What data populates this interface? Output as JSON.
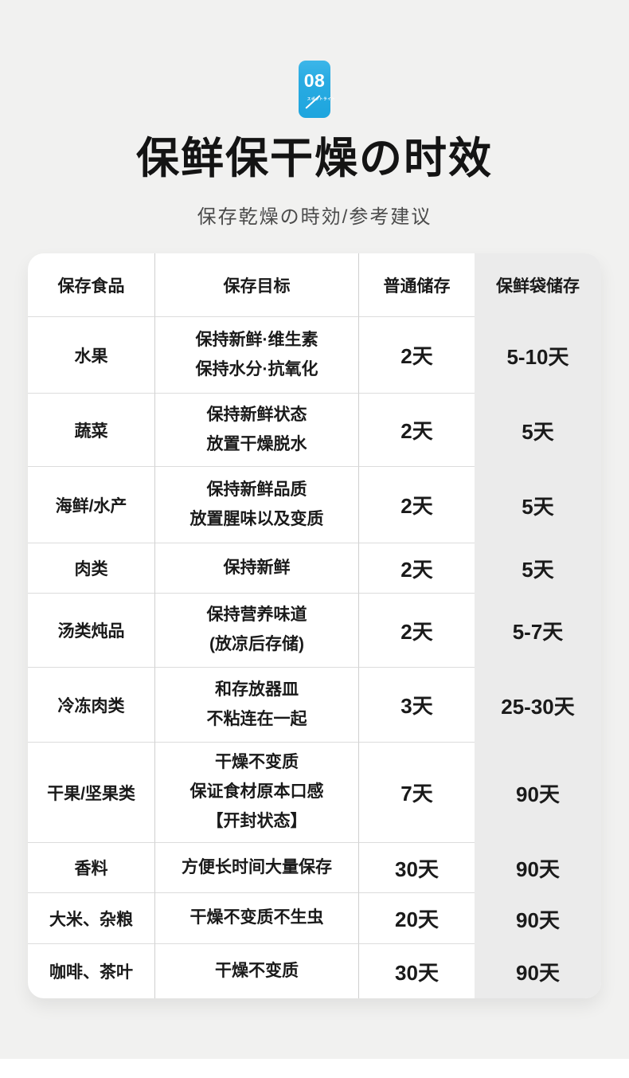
{
  "badge": {
    "number": "08",
    "label": "スポットライト",
    "color": "#29abe2"
  },
  "header": {
    "title": "保鲜保干燥の时效",
    "subtitle": "保存乾燥の時効/参考建议"
  },
  "table": {
    "columns": [
      "保存食品",
      "保存目标",
      "普通储存",
      "保鲜袋储存"
    ],
    "highlight_column_bg": "#ebebeb",
    "rows": [
      {
        "food": "水果",
        "goal": "保持新鲜·维生素\n保持水分·抗氧化",
        "normal": "2天",
        "bag": "5-10天"
      },
      {
        "food": "蔬菜",
        "goal": "保持新鲜状态\n放置干燥脱水",
        "normal": "2天",
        "bag": "5天"
      },
      {
        "food": "海鲜/水产",
        "goal": "保持新鲜品质\n放置腥味以及变质",
        "normal": "2天",
        "bag": "5天"
      },
      {
        "food": "肉类",
        "goal": "保持新鲜",
        "normal": "2天",
        "bag": "5天"
      },
      {
        "food": "汤类炖品",
        "goal": "保持营养味道\n(放凉后存储)",
        "normal": "2天",
        "bag": "5-7天"
      },
      {
        "food": "冷冻肉类",
        "goal": "和存放器皿\n不粘连在一起",
        "normal": "3天",
        "bag": "25-30天"
      },
      {
        "food": "干果/坚果类",
        "goal": "干燥不变质\n保证食材原本口感\n【开封状态】",
        "normal": "7天",
        "bag": "90天"
      },
      {
        "food": "香料",
        "goal": "方便长时间大量保存",
        "normal": "30天",
        "bag": "90天"
      },
      {
        "food": "大米、杂粮",
        "goal": "干燥不变质不生虫",
        "normal": "20天",
        "bag": "90天"
      },
      {
        "food": "咖啡、茶叶",
        "goal": "干燥不变质",
        "normal": "30天",
        "bag": "90天"
      }
    ]
  }
}
